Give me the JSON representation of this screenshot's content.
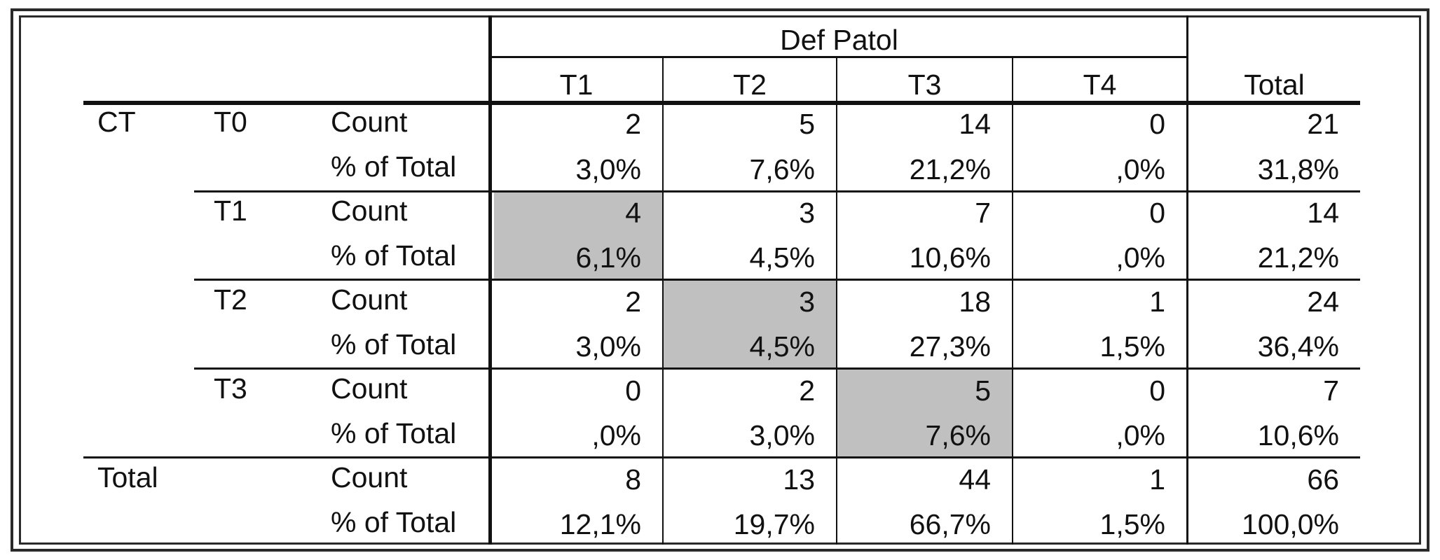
{
  "header": {
    "group": "Def Patol",
    "columns": [
      "T1",
      "T2",
      "T3",
      "T4"
    ],
    "total": "Total"
  },
  "row_var": "CT",
  "row_groups": [
    {
      "label": "T0",
      "count": {
        "stat": "Count",
        "cells": [
          "2",
          "5",
          "14",
          "0"
        ],
        "total": "21"
      },
      "pct": {
        "stat": "% of Total",
        "cells": [
          "3,0%",
          "7,6%",
          "21,2%",
          ",0%"
        ],
        "total": "31,8%"
      }
    },
    {
      "label": "T1",
      "count": {
        "stat": "Count",
        "cells": [
          "4",
          "3",
          "7",
          "0"
        ],
        "total": "14"
      },
      "pct": {
        "stat": "% of Total",
        "cells": [
          "6,1%",
          "4,5%",
          "10,6%",
          ",0%"
        ],
        "total": "21,2%"
      }
    },
    {
      "label": "T2",
      "count": {
        "stat": "Count",
        "cells": [
          "2",
          "3",
          "18",
          "1"
        ],
        "total": "24"
      },
      "pct": {
        "stat": "% of Total",
        "cells": [
          "3,0%",
          "4,5%",
          "27,3%",
          "1,5%"
        ],
        "total": "36,4%"
      }
    },
    {
      "label": "T3",
      "count": {
        "stat": "Count",
        "cells": [
          "0",
          "2",
          "5",
          "0"
        ],
        "total": "7"
      },
      "pct": {
        "stat": "% of Total",
        "cells": [
          ",0%",
          "3,0%",
          "7,6%",
          ",0%"
        ],
        "total": "10,6%"
      }
    }
  ],
  "total_row": {
    "label": "Total",
    "count": {
      "stat": "Count",
      "cells": [
        "8",
        "13",
        "44",
        "1"
      ],
      "total": "66"
    },
    "pct": {
      "stat": "% of Total",
      "cells": [
        "12,1%",
        "19,7%",
        "66,7%",
        "1,5%"
      ],
      "total": "100,0%"
    }
  },
  "highlight_color": "#c0c0c0",
  "highlighted_cells": [
    {
      "group": 1,
      "column": 0
    },
    {
      "group": 2,
      "column": 1
    },
    {
      "group": 3,
      "column": 2
    }
  ]
}
